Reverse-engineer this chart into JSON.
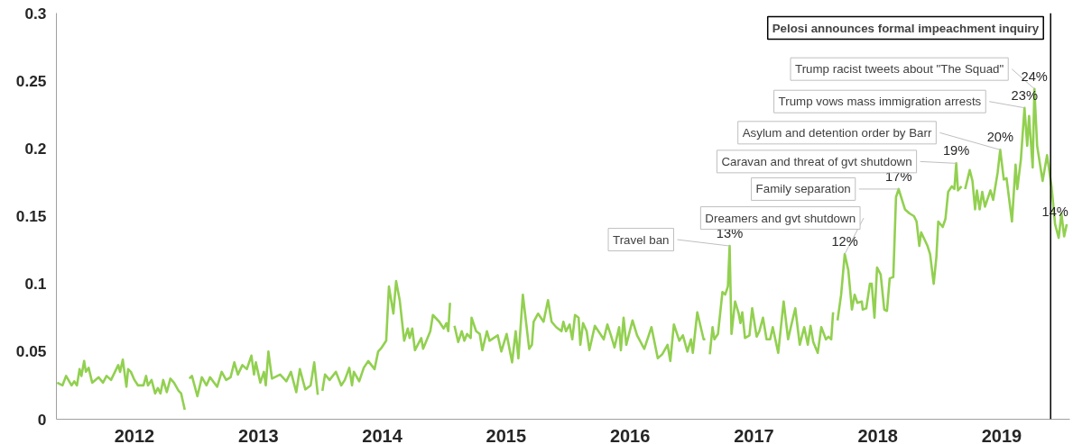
{
  "chart_data": {
    "type": "line",
    "xlim": [
      2011.37,
      2019.55
    ],
    "ylim": [
      0,
      0.3
    ],
    "xticks": [
      2012,
      2013,
      2014,
      2015,
      2016,
      2017,
      2018,
      2019
    ],
    "yticks": [
      0,
      0.05,
      0.1,
      0.15,
      0.2,
      0.25,
      0.3
    ],
    "x": [
      2011.376,
      2011.419,
      2011.448,
      2011.492,
      2011.514,
      2011.536,
      2011.557,
      2011.572,
      2011.594,
      2011.608,
      2011.63,
      2011.659,
      2011.71,
      2011.746,
      2011.775,
      2011.811,
      2011.869,
      2011.884,
      2011.906,
      2011.935,
      2011.949,
      2011.971,
      2012.0,
      2012.029,
      2012.073,
      2012.094,
      2012.109,
      2012.138,
      2012.167,
      2012.189,
      2012.21,
      2012.232,
      2012.261,
      2012.29,
      2012.319,
      2012.356,
      2012.377,
      2012.406,
      2012.425,
      2012.443,
      2012.464,
      2012.508,
      2012.544,
      2012.581,
      2012.61,
      2012.668,
      2012.704,
      2012.74,
      2012.776,
      2012.806,
      2012.835,
      2012.871,
      2012.907,
      2012.944,
      2012.965,
      2012.98,
      2013.016,
      2013.045,
      2013.06,
      2013.081,
      2013.11,
      2013.176,
      2013.226,
      2013.263,
      2013.306,
      2013.335,
      2013.379,
      2013.422,
      2013.451,
      2013.48,
      2013.498,
      2013.517,
      2013.538,
      2013.575,
      2013.626,
      2013.669,
      2013.698,
      2013.734,
      2013.756,
      2013.771,
      2013.814,
      2013.851,
      2013.887,
      2013.938,
      2013.967,
      2013.996,
      2014.032,
      2014.054,
      2014.09,
      2014.112,
      2014.141,
      2014.177,
      2014.206,
      2014.221,
      2014.242,
      2014.264,
      2014.315,
      2014.33,
      2014.388,
      2014.409,
      2014.46,
      2014.496,
      2014.518,
      2014.533,
      2014.547,
      2014.565,
      2014.583,
      2014.613,
      2014.642,
      2014.663,
      2014.685,
      2014.714,
      2014.721,
      2014.758,
      2014.787,
      2014.808,
      2014.845,
      2014.866,
      2014.932,
      2014.961,
      2015.004,
      2015.048,
      2015.077,
      2015.099,
      2015.135,
      2015.186,
      2015.208,
      2015.222,
      2015.258,
      2015.302,
      2015.338,
      2015.367,
      2015.404,
      2015.447,
      2015.462,
      2015.483,
      2015.512,
      2015.534,
      2015.556,
      2015.585,
      2015.599,
      2015.621,
      2015.65,
      2015.672,
      2015.716,
      2015.745,
      2015.788,
      2015.817,
      2015.846,
      2015.875,
      2015.912,
      2015.926,
      2015.948,
      2015.97,
      2016.02,
      2016.057,
      2016.115,
      2016.173,
      2016.224,
      2016.26,
      2016.303,
      2016.325,
      2016.354,
      2016.398,
      2016.427,
      2016.463,
      2016.492,
      2016.507,
      2016.543,
      2016.594,
      2016.608,
      2016.625,
      2016.644,
      2016.666,
      2016.681,
      2016.71,
      2016.746,
      2016.768,
      2016.79,
      2016.804,
      2016.819,
      2016.848,
      2016.877,
      2016.891,
      2016.906,
      2016.928,
      2016.964,
      2016.986,
      2017.022,
      2017.044,
      2017.073,
      2017.102,
      2017.131,
      2017.152,
      2017.196,
      2017.24,
      2017.276,
      2017.298,
      2017.334,
      2017.37,
      2017.406,
      2017.435,
      2017.457,
      2017.479,
      2017.515,
      2017.544,
      2017.581,
      2017.602,
      2017.624,
      2017.639,
      2017.655,
      2017.675,
      2017.704,
      2017.733,
      2017.762,
      2017.791,
      2017.813,
      2017.835,
      2017.871,
      2017.878,
      2017.907,
      2017.936,
      2017.951,
      2017.973,
      2017.994,
      2018.023,
      2018.052,
      2018.074,
      2018.096,
      2018.125,
      2018.147,
      2018.168,
      2018.219,
      2018.256,
      2018.292,
      2018.313,
      2018.335,
      2018.35,
      2018.401,
      2018.422,
      2018.451,
      2018.473,
      2018.488,
      2018.524,
      2018.546,
      2018.568,
      2018.597,
      2018.618,
      2018.633,
      2018.647,
      2018.676,
      2018.69,
      2018.705,
      2018.742,
      2018.764,
      2018.785,
      2018.8,
      2018.822,
      2018.843,
      2018.865,
      2018.909,
      2018.931,
      2018.967,
      2018.988,
      2019.017,
      2019.039,
      2019.083,
      2019.112,
      2019.126,
      2019.155,
      2019.184,
      2019.206,
      2019.221,
      2019.25,
      2019.264,
      2019.286,
      2019.33,
      2019.366,
      2019.402,
      2019.431,
      2019.46,
      2019.482,
      2019.504,
      2019.525
    ],
    "series": [
      {
        "color": "#92d050",
        "values": [
          0.027,
          0.025,
          0.032,
          0.025,
          0.028,
          0.025,
          0.037,
          0.032,
          0.043,
          0.035,
          0.038,
          0.027,
          0.031,
          0.027,
          0.032,
          0.029,
          0.04,
          0.035,
          0.044,
          0.024,
          0.037,
          0.035,
          0.029,
          0.025,
          0.025,
          0.032,
          0.025,
          0.029,
          0.019,
          0.023,
          0.019,
          0.029,
          0.02,
          0.03,
          0.027,
          0.021,
          0.019,
          0.007,
          null,
          0.03,
          0.032,
          0.017,
          0.031,
          0.025,
          0.031,
          0.024,
          0.035,
          0.029,
          0.031,
          0.042,
          0.033,
          0.04,
          0.037,
          0.047,
          0.033,
          0.042,
          0.027,
          0.035,
          0.025,
          0.05,
          0.03,
          0.033,
          0.028,
          0.035,
          0.02,
          0.037,
          0.022,
          0.025,
          0.042,
          0.018,
          null,
          0.021,
          0.033,
          0.029,
          0.035,
          0.025,
          0.029,
          0.038,
          0.025,
          0.035,
          0.028,
          0.038,
          0.043,
          0.037,
          0.05,
          0.053,
          0.058,
          0.098,
          0.078,
          0.102,
          0.088,
          0.058,
          0.067,
          0.06,
          0.067,
          0.051,
          0.06,
          0.052,
          0.065,
          0.077,
          0.072,
          0.067,
          0.071,
          0.065,
          0.086,
          null,
          0.069,
          0.057,
          0.065,
          0.058,
          0.063,
          0.06,
          0.075,
          0.065,
          0.063,
          0.051,
          0.065,
          0.058,
          0.062,
          0.05,
          0.063,
          0.042,
          0.065,
          0.045,
          0.092,
          0.052,
          0.055,
          0.072,
          0.078,
          0.072,
          0.088,
          0.072,
          0.068,
          0.065,
          0.072,
          0.065,
          0.07,
          0.059,
          0.077,
          0.075,
          0.055,
          0.071,
          0.065,
          0.051,
          0.069,
          0.065,
          0.059,
          0.07,
          0.062,
          0.053,
          0.068,
          0.051,
          0.075,
          0.055,
          0.073,
          0.062,
          0.052,
          0.068,
          0.045,
          0.048,
          0.055,
          0.043,
          0.07,
          0.058,
          0.062,
          0.05,
          0.059,
          0.049,
          0.079,
          0.059,
          0.059,
          null,
          0.048,
          0.068,
          0.059,
          0.063,
          0.094,
          0.092,
          0.098,
          0.128,
          0.063,
          0.087,
          0.078,
          0.071,
          0.079,
          0.06,
          0.062,
          0.082,
          0.061,
          0.065,
          0.075,
          0.059,
          0.059,
          0.068,
          0.049,
          0.087,
          0.059,
          0.068,
          0.082,
          0.055,
          0.068,
          0.055,
          0.069,
          0.057,
          0.049,
          0.068,
          0.059,
          0.061,
          0.059,
          0.079,
          null,
          0.073,
          0.092,
          0.122,
          0.11,
          0.081,
          0.092,
          0.086,
          0.087,
          0.081,
          0.082,
          0.1,
          0.1,
          0.075,
          0.112,
          0.107,
          0.081,
          0.08,
          0.104,
          0.105,
          0.164,
          0.17,
          0.155,
          0.152,
          0.15,
          0.146,
          0.128,
          0.138,
          0.128,
          0.122,
          0.1,
          0.12,
          0.146,
          0.142,
          0.148,
          0.168,
          0.172,
          0.17,
          0.189,
          0.169,
          0.172,
          null,
          0.17,
          0.184,
          0.176,
          0.155,
          0.169,
          0.155,
          0.168,
          0.157,
          0.169,
          0.162,
          0.182,
          0.199,
          0.177,
          0.178,
          0.146,
          0.188,
          0.17,
          0.192,
          0.23,
          0.202,
          0.224,
          0.186,
          0.244,
          0.202,
          0.176,
          0.195,
          0.172,
          0.144,
          0.134,
          0.152,
          0.135,
          0.144
        ],
        "value_labels": [
          null,
          null,
          null,
          null,
          null,
          null,
          null,
          null,
          null,
          null,
          null,
          null,
          null,
          null,
          null,
          null,
          null,
          null,
          null,
          null,
          null,
          null,
          null,
          null,
          null,
          null,
          null,
          null,
          null,
          null,
          null,
          null,
          null,
          null,
          null,
          null,
          null,
          null,
          null,
          null,
          null,
          null,
          null,
          null,
          null,
          null,
          null,
          null,
          null,
          null,
          null,
          null,
          null,
          null,
          null,
          null,
          null,
          null,
          null,
          null,
          null,
          null,
          null,
          null,
          null,
          null,
          null,
          null,
          null,
          null,
          null,
          null,
          null,
          null,
          null,
          null,
          null,
          null,
          null,
          null,
          null,
          null,
          null,
          null,
          null,
          null,
          null,
          null,
          null,
          null,
          null,
          null,
          null,
          null,
          null,
          null,
          null,
          null,
          null,
          null,
          null,
          null,
          null,
          null,
          null,
          null,
          null,
          null,
          null,
          null,
          null,
          null,
          null,
          null,
          null,
          null,
          null,
          null,
          null,
          null,
          null,
          null,
          null,
          null,
          null,
          null,
          null,
          null,
          null,
          null,
          null,
          null,
          null,
          null,
          null,
          null,
          null,
          null,
          null,
          null,
          null,
          null,
          null,
          null,
          null,
          null,
          null,
          null,
          null,
          null,
          null,
          null,
          null,
          null,
          null,
          null,
          null,
          null,
          null,
          null,
          null,
          null,
          null,
          null,
          null,
          null,
          null,
          null,
          null,
          null,
          null,
          null,
          null,
          null,
          null,
          null,
          null,
          null,
          null,
          "13%",
          null,
          null,
          null,
          null,
          null,
          null,
          null,
          null,
          null,
          null,
          null,
          null,
          null,
          null,
          null,
          null,
          null,
          null,
          null,
          null,
          null,
          null,
          null,
          null,
          null,
          null,
          null,
          null,
          null,
          null,
          null,
          null,
          null,
          "12%",
          null,
          null,
          null,
          null,
          null,
          null,
          null,
          null,
          null,
          null,
          null,
          null,
          null,
          null,
          null,
          null,
          null,
          "17%",
          null,
          null,
          null,
          null,
          null,
          null,
          null,
          null,
          null,
          null,
          null,
          null,
          null,
          null,
          null,
          null,
          "19%",
          null,
          null,
          null,
          null,
          null,
          null,
          null,
          null,
          null,
          null,
          null,
          null,
          null,
          null,
          "20%",
          null,
          null,
          null,
          null,
          null,
          null,
          "23%",
          null,
          null,
          null,
          "24%",
          null,
          null,
          null,
          null,
          "14%",
          null,
          null,
          null,
          null
        ]
      }
    ],
    "annotations": [
      {
        "text": "Travel ban",
        "x": 2016.804,
        "y": 0.128
      },
      {
        "text": "Dreamers and gvt shutdown",
        "x": 2017.733,
        "y": 0.122
      },
      {
        "text": "Family separation",
        "x": 2018.168,
        "y": 0.17
      },
      {
        "text": "Caravan and threat of gvt shutdown",
        "x": 2018.633,
        "y": 0.189
      },
      {
        "text": "Asylum and detention order by Barr",
        "x": 2018.988,
        "y": 0.199
      },
      {
        "text": "Trump vows mass immigration arrests",
        "x": 2019.184,
        "y": 0.23
      },
      {
        "text": "Trump racist tweets about \"The Squad\"",
        "x": 2019.264,
        "y": 0.244
      }
    ],
    "ref_lines": [
      {
        "axis": "x",
        "value": 2019.395,
        "label": "Pelosi announces formal impeachment inquiry",
        "color": "#000000"
      }
    ]
  }
}
